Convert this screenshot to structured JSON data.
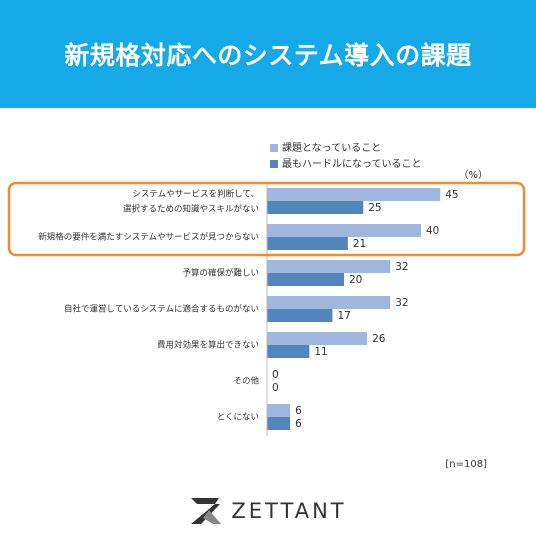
{
  "header": {
    "title": "新規格対応へのシステム導入の課題"
  },
  "colors": {
    "header_bg": "#15a9e8",
    "series_light": "#9fb6dd",
    "series_dark": "#4f86bd",
    "highlight_border": "#f28a2e"
  },
  "chart_data": {
    "type": "bar",
    "orientation": "horizontal",
    "unit_label": "（%）",
    "n_label": "[n=108]",
    "xlim": [
      0,
      100
    ],
    "grid": false,
    "legend_position": "top-right",
    "categories": [
      [
        "システムやサービスを判断して、",
        "選択するための知識やスキルがない"
      ],
      [
        "新規格の要件を満たすシステムやサービスが見つからない"
      ],
      [
        "予算の確保が難しい"
      ],
      [
        "自社で運営しているシステムに適合するものがない"
      ],
      [
        "費用対効果を算出できない"
      ],
      [
        "その他"
      ],
      [
        "とくにない"
      ]
    ],
    "series": [
      {
        "name": "課題となっていること",
        "values": [
          45,
          40,
          32,
          32,
          26,
          0,
          6
        ]
      },
      {
        "name": "最もハードルになっていること",
        "values": [
          25,
          21,
          20,
          17,
          11,
          0,
          6
        ]
      }
    ],
    "highlighted_categories": [
      0,
      1
    ]
  },
  "brand": {
    "name": "ZETTANT",
    "logo_icon": "zettant-logo-icon"
  }
}
